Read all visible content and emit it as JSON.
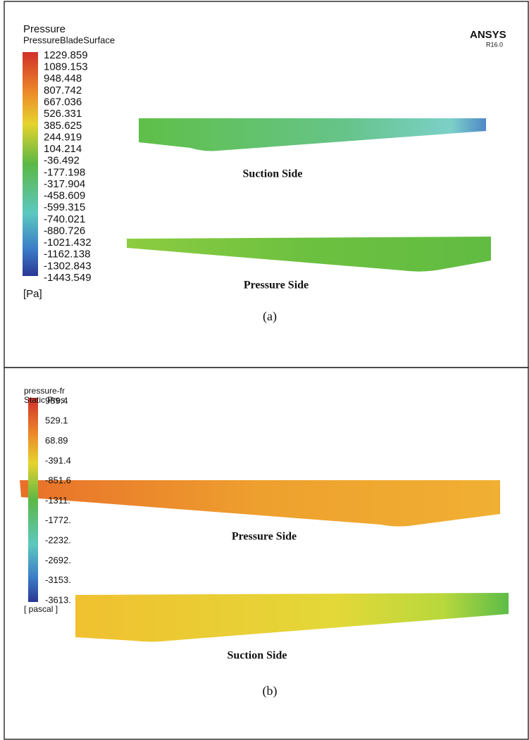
{
  "panel_a": {
    "legend_title": "Pressure",
    "legend_subtitle": "PressureBladeSurface",
    "legend_ticks": [
      "1229.859",
      "1089.153",
      "948.448",
      "807.742",
      "667.036",
      "526.331",
      "385.625",
      "244.919",
      "104.214",
      "-36.492",
      "-177.198",
      "-317.904",
      "-458.609",
      "-599.315",
      "-740.021",
      "-880.726",
      "-1021.432",
      "-1162.138",
      "-1302.843",
      "-1443.549"
    ],
    "unit": "[Pa]",
    "logo": "ANSYS",
    "version": "R16.0",
    "labels": [
      "Suction Side",
      "Pressure Side"
    ],
    "caption": "(a)"
  },
  "panel_b": {
    "legend_title": "pressure-fr",
    "legend_subtitle": "Static Pres",
    "legend_ticks": [
      "989.4",
      "529.1",
      "68.89",
      "-391.4",
      "-851.6",
      "-1311.",
      "-1772.",
      "-2232.",
      "-2692.",
      "-3153.",
      "-3613."
    ],
    "unit": "[ pascal ]",
    "labels": [
      "Pressure Side",
      "Suction Side"
    ],
    "caption": "(b)"
  }
}
